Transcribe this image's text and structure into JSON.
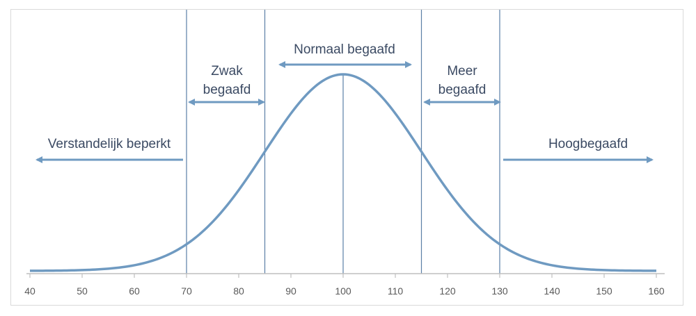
{
  "chart_data": {
    "type": "line",
    "title": "",
    "xlabel": "",
    "ylabel": "",
    "xlim": [
      40,
      160
    ],
    "x_ticks": [
      40,
      50,
      60,
      70,
      80,
      90,
      100,
      110,
      120,
      130,
      140,
      150,
      160
    ],
    "curve": {
      "kind": "normal",
      "mean": 100,
      "sd": 15
    },
    "boundaries": [
      70,
      85,
      100,
      115,
      130
    ],
    "categories": [
      {
        "id": "verstandelijk",
        "lines": [
          "Verstandelijk beperkt"
        ],
        "range": [
          "",
          70
        ]
      },
      {
        "id": "zwak",
        "lines": [
          "Zwak",
          "begaafd"
        ],
        "range": [
          70,
          85
        ]
      },
      {
        "id": "normaal",
        "lines": [
          "Normaal begaafd"
        ],
        "range": [
          85,
          115
        ]
      },
      {
        "id": "meer",
        "lines": [
          "Meer",
          "begaafd"
        ],
        "range": [
          115,
          130
        ]
      },
      {
        "id": "hoog",
        "lines": [
          "Hoogbegaafd"
        ],
        "range": [
          130,
          ""
        ]
      }
    ],
    "grid": false,
    "colors": {
      "curve": "#6f9ac1",
      "arrow": "#6f9ac1",
      "boundary": "#5b7fa6",
      "axis": "#bfbfbf",
      "label": "#3b4a63"
    }
  }
}
